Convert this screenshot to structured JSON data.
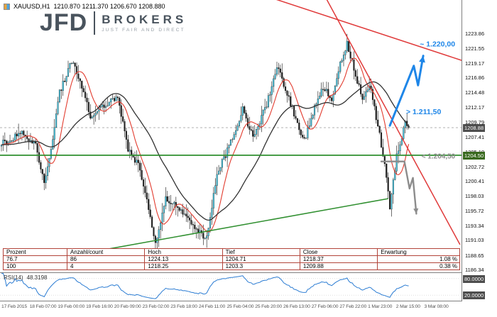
{
  "window": {
    "title_symbol": "XAUUSD,H1",
    "title_quotes": "1210.870 1211.370 1206.670 1208.880"
  },
  "logo": {
    "name": "JFD",
    "brand": "BROKERS",
    "tagline": "JUST FAIR AND DIRECT"
  },
  "chart_data": {
    "type": "candlestick",
    "symbol": "XAUUSD",
    "timeframe": "H1",
    "quote": {
      "open": 1210.87,
      "high": 1211.37,
      "low": 1206.67,
      "close": 1208.88
    },
    "y_axis": {
      "min": 1185.78,
      "max": 1229.16,
      "labels": [
        "1223.86",
        "1221.55",
        "1219.17",
        "1216.86",
        "1214.48",
        "1212.17",
        "1209.79",
        "1207.41",
        "1205.10",
        "1202.72",
        "1200.41",
        "1198.03",
        "1195.72",
        "1193.34",
        "1191.03",
        "1188.65",
        "1186.34"
      ]
    },
    "x_axis": {
      "labels": [
        "17 Feb 2015",
        "18 Feb 07:00",
        "19 Feb 00:00",
        "19 Feb 16:00",
        "20 Feb 09:00",
        "23 Feb 02:00",
        "23 Feb 18:00",
        "24 Feb 11:00",
        "25 Feb 04:00",
        "25 Feb 20:00",
        "26 Feb 13:00",
        "27 Feb 06:00",
        "27 Feb 22:00",
        "1 Mar 23:00",
        "2 Mar 15:00",
        "3 Mar 08:00"
      ]
    },
    "bars_total": 239,
    "bar_spacing": 2.41,
    "price_path": [
      [
        2,
        1206.5
      ],
      [
        12,
        1208.0
      ],
      [
        20,
        1206.0
      ],
      [
        25,
        1199.8
      ],
      [
        30,
        1207.0
      ],
      [
        34,
        1214.5
      ],
      [
        41,
        1219.3
      ],
      [
        46,
        1216.5
      ],
      [
        52,
        1210.5
      ],
      [
        62,
        1212.8
      ],
      [
        68,
        1213.5
      ],
      [
        74,
        1205.5
      ],
      [
        80,
        1202.8
      ],
      [
        86,
        1196.0
      ],
      [
        90,
        1190.6
      ],
      [
        96,
        1197.5
      ],
      [
        104,
        1196.2
      ],
      [
        110,
        1193.8
      ],
      [
        116,
        1192.2
      ],
      [
        120,
        1191.2
      ],
      [
        126,
        1201.5
      ],
      [
        134,
        1206.5
      ],
      [
        141,
        1211.8
      ],
      [
        147,
        1207.3
      ],
      [
        155,
        1212.5
      ],
      [
        161,
        1218.6
      ],
      [
        166,
        1215.2
      ],
      [
        172,
        1210.2
      ],
      [
        177,
        1206.8
      ],
      [
        183,
        1212.2
      ],
      [
        188,
        1215.4
      ],
      [
        193,
        1213.2
      ],
      [
        198,
        1219.2
      ],
      [
        202,
        1222.3
      ],
      [
        207,
        1217.3
      ],
      [
        211,
        1213.2
      ],
      [
        215,
        1215.8
      ],
      [
        220,
        1209.3
      ],
      [
        224,
        1203.0
      ],
      [
        227,
        1196.3
      ],
      [
        231,
        1204.5
      ],
      [
        236,
        1209.6
      ],
      [
        238,
        1208.9
      ]
    ],
    "candles": {
      "bull_color": "#46c2dc",
      "bear_color": "#1f1f1f",
      "wick_color": "#111111"
    },
    "moving_averages": [
      {
        "name": "ma-fast-line",
        "period": 10,
        "color": "#e23b2e",
        "width": 1.1
      },
      {
        "name": "ma-slow-line",
        "period": 34,
        "color": "#333333",
        "width": 1.3
      }
    ],
    "current_price": {
      "value": 1208.88,
      "line_color": "#999999"
    },
    "price_badges": [
      {
        "text": "1208.88",
        "price": 1208.88,
        "bg": "#4d4d4d"
      },
      {
        "text": "1204.50",
        "price": 1204.5,
        "bg": "#39691f"
      }
    ],
    "trendlines": [
      {
        "name": "resistance-trendline-steep",
        "color": "#e03a3a",
        "width": 1.5,
        "p1": [
          175,
          1236.8
        ],
        "p2": [
          268,
          1190.3
        ]
      },
      {
        "name": "resistance-trendline-shallow",
        "color": "#e03a3a",
        "width": 1.5,
        "p1": [
          160,
          1229.3
        ],
        "p2": [
          272,
          1219.3
        ]
      },
      {
        "name": "support-trendline-ascending",
        "color": "#2f8f2f",
        "width": 1.5,
        "p1": [
          42,
          1188.6
        ],
        "p2": [
          226,
          1197.6
        ]
      },
      {
        "name": "support-level-horizontal",
        "color": "#2f8f2f",
        "width": 1.8,
        "p1": [
          -1,
          1204.5
        ],
        "p2": [
          272,
          1204.5
        ]
      }
    ],
    "annotations": [
      {
        "name": "bull-scenario-arrow",
        "kind": "path",
        "color": "#1e86e8",
        "width": 3,
        "points": [
          [
            227,
            1209.2
          ],
          [
            241,
            1218.7
          ],
          [
            243.5,
            1215.6
          ],
          [
            246.5,
            1220.3
          ]
        ],
        "arrow": true
      },
      {
        "name": "target-price-label",
        "kind": "label",
        "text": "~ 1.220,00",
        "color": "#1e86e8",
        "size": 10.5,
        "bar": 244.5,
        "price": 1221.8
      },
      {
        "name": "breakout-price-label",
        "kind": "label",
        "text": "> 1.211,50",
        "color": "#1e86e8",
        "size": 10.5,
        "bar": 236.5,
        "price": 1211.0
      },
      {
        "name": "bear-scenario-arrow",
        "kind": "path",
        "color": "#8c8c8c",
        "width": 2.4,
        "points": [
          [
            222,
            1203.5
          ],
          [
            235.5,
            1203.5
          ],
          [
            238.5,
            1199.2
          ],
          [
            240.5,
            1200.9
          ],
          [
            242.5,
            1195.2
          ]
        ],
        "arrow": true
      },
      {
        "name": "bear-level-label",
        "kind": "label",
        "text": "< 1.204,50",
        "color": "#8c8c8c",
        "size": 10,
        "bar": 245.5,
        "price": 1204.0
      }
    ],
    "rsi": {
      "label": "RSI(14)",
      "value": "48.3198",
      "period": 14,
      "color": "#2b7cd3",
      "levels": [
        {
          "value": 80,
          "text": "80.0000"
        },
        {
          "value": 20,
          "text": "20.0000"
        }
      ]
    }
  },
  "table": {
    "headers": [
      "Prozent",
      "Anzahl/count",
      "Hoch",
      "Tief",
      "Close",
      "Erwartung"
    ],
    "rows": [
      [
        "76.7",
        "86",
        "1224.13",
        "1204.71",
        "1218.37",
        "1.08 %"
      ],
      [
        "100",
        "4",
        "1218.25",
        "1203.3",
        "1209.88",
        "0.38 %"
      ]
    ]
  }
}
